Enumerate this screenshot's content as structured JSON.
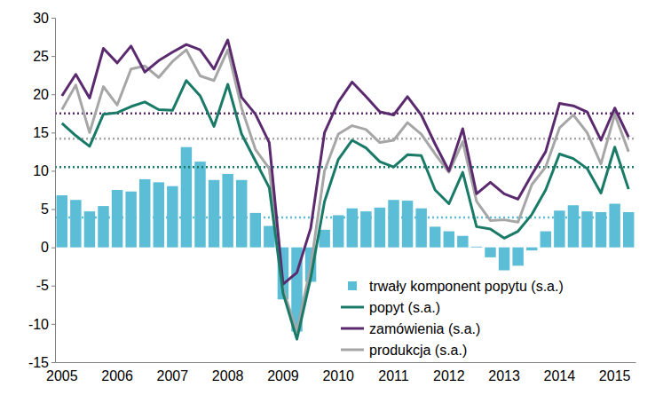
{
  "chart_data": {
    "type": "bar",
    "categories": [
      "2005",
      null,
      null,
      null,
      "2006",
      null,
      null,
      null,
      "2007",
      null,
      null,
      null,
      "2008",
      null,
      null,
      null,
      "2009",
      null,
      null,
      null,
      "2010",
      null,
      null,
      null,
      "2011",
      null,
      null,
      null,
      "2012",
      null,
      null,
      null,
      "2013",
      null,
      null,
      null,
      "2014",
      null,
      null,
      null,
      "2015",
      null
    ],
    "series": [
      {
        "name": "trwały komponent popytu (s.a.)",
        "type": "bar",
        "color": "#5bbdd6",
        "mean": 3.9,
        "values": [
          6.8,
          6.2,
          4.7,
          5.4,
          7.5,
          7.3,
          8.9,
          8.5,
          8.0,
          13.1,
          11.2,
          8.8,
          9.6,
          8.8,
          4.5,
          2.8,
          -6.8,
          -11.0,
          -4.5,
          2.3,
          4.2,
          5.1,
          4.7,
          5.2,
          6.2,
          6.1,
          5.1,
          2.7,
          2.1,
          1.5,
          0.1,
          -1.3,
          -3.0,
          -2.4,
          -0.4,
          2.1,
          4.8,
          5.5,
          4.7,
          4.6,
          5.7,
          4.6
        ]
      },
      {
        "name": "popyt (s.a.)",
        "type": "line",
        "color": "#1a7a68",
        "mean": 10.5,
        "values": [
          16.2,
          14.6,
          13.2,
          17.4,
          17.6,
          18.4,
          19.0,
          18.0,
          17.9,
          21.8,
          19.8,
          15.8,
          21.3,
          14.8,
          11.3,
          7.8,
          -6.0,
          -12.0,
          -4.0,
          6.0,
          11.5,
          14.0,
          13.0,
          11.2,
          10.5,
          12.1,
          12.0,
          7.5,
          5.7,
          9.8,
          2.7,
          2.4,
          1.2,
          2.1,
          4.3,
          7.5,
          12.2,
          11.6,
          10.3,
          7.1,
          13.1,
          7.6
        ]
      },
      {
        "name": "zamówienia (s.a.)",
        "type": "line",
        "color": "#5b2a6e",
        "mean": 17.5,
        "values": [
          19.8,
          22.6,
          19.5,
          26.0,
          24.1,
          26.3,
          22.9,
          24.4,
          25.5,
          26.5,
          25.8,
          23.3,
          27.1,
          19.6,
          17.4,
          13.7,
          -4.8,
          -3.3,
          2.5,
          15.0,
          19.0,
          21.6,
          19.7,
          17.7,
          17.3,
          19.7,
          17.3,
          13.5,
          10.0,
          15.5,
          7.0,
          8.5,
          7.0,
          6.3,
          9.5,
          12.5,
          18.8,
          18.5,
          17.7,
          14.0,
          18.2,
          14.4
        ]
      },
      {
        "name": "produkcja (s.a.)",
        "type": "line",
        "color": "#a6a6a6",
        "mean": 14.2,
        "values": [
          18.0,
          21.2,
          15.0,
          21.0,
          18.6,
          23.3,
          23.7,
          22.2,
          24.3,
          25.8,
          22.4,
          21.8,
          25.8,
          18.2,
          12.8,
          10.3,
          -5.5,
          -11.0,
          -2.5,
          10.0,
          14.8,
          15.9,
          15.4,
          13.7,
          14.0,
          16.3,
          14.8,
          12.2,
          9.8,
          13.8,
          6.0,
          3.5,
          3.6,
          3.3,
          8.2,
          10.5,
          15.6,
          17.3,
          15.0,
          10.9,
          17.4,
          12.5
        ]
      }
    ],
    "ylim": [
      -15,
      30
    ],
    "yticks": [
      -15,
      -10,
      -5,
      0,
      5,
      10,
      15,
      20,
      25,
      30
    ],
    "grid": false,
    "legend": "bottom-right"
  }
}
